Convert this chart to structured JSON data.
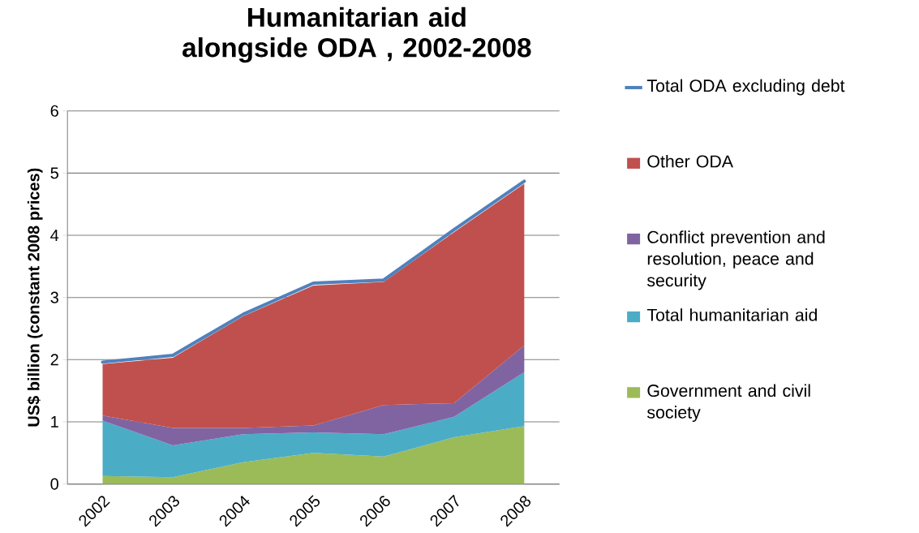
{
  "chart_data": {
    "type": "area",
    "title": "Humanitarian aid alongside ODA , 2002-2008",
    "ylabel": "US$ billion (constant 2008 prices)",
    "categories": [
      "2002",
      "2003",
      "2004",
      "2005",
      "2006",
      "2007",
      "2008"
    ],
    "stacked": true,
    "ylim": [
      0,
      6
    ],
    "yticks": [
      0,
      1,
      2,
      3,
      4,
      5,
      6
    ],
    "grid": "y",
    "legend": "right",
    "series": [
      {
        "name": "Government and civil society",
        "color": "#9bbb59",
        "values": [
          0.13,
          0.11,
          0.35,
          0.5,
          0.44,
          0.75,
          0.93
        ]
      },
      {
        "name": "Total humanitarian aid",
        "color": "#4bacc6",
        "values": [
          0.89,
          0.51,
          0.45,
          0.33,
          0.36,
          0.33,
          0.87
        ]
      },
      {
        "name": "Conflict prevention and resolution, peace and security",
        "color": "#8064a2",
        "values": [
          0.08,
          0.28,
          0.1,
          0.11,
          0.47,
          0.22,
          0.43
        ]
      },
      {
        "name": "Other ODA",
        "color": "#c0504d",
        "values": [
          0.83,
          1.13,
          1.8,
          2.25,
          1.98,
          2.75,
          2.6
        ]
      },
      {
        "name": "Total ODA excluding debt",
        "type": "line",
        "color": "#4f81bd",
        "values": [
          1.96,
          2.07,
          2.73,
          3.23,
          3.28,
          4.09,
          4.87
        ]
      }
    ]
  }
}
